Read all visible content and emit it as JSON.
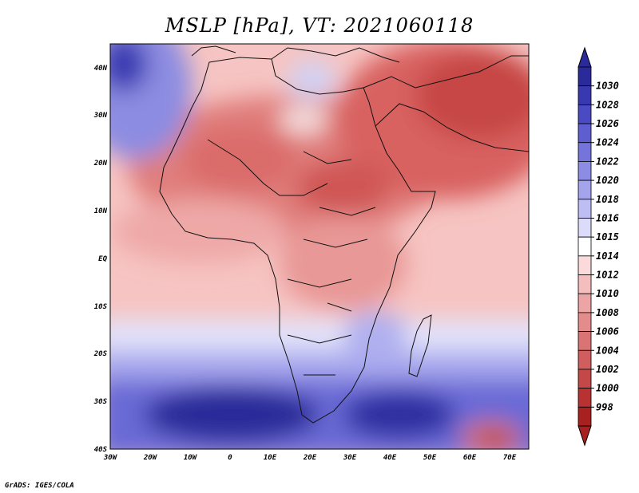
{
  "title": "MSLP [hPa], VT: 2021060118",
  "credit": "GrADS: IGES/COLA",
  "map": {
    "lat_labels": [
      "40N",
      "30N",
      "20N",
      "10N",
      "EQ",
      "10S",
      "20S",
      "30S",
      "40S"
    ],
    "lon_labels": [
      "30W",
      "20W",
      "10W",
      "0",
      "10E",
      "20E",
      "30E",
      "40E",
      "50E",
      "60E",
      "70E"
    ]
  },
  "colorbar": {
    "levels": [
      "1030",
      "1028",
      "1026",
      "1024",
      "1022",
      "1020",
      "1018",
      "1016",
      "1015",
      "1014",
      "1012",
      "1010",
      "1008",
      "1006",
      "1004",
      "1002",
      "1000",
      "998"
    ],
    "colors": [
      "#2a2a9a",
      "#3838b0",
      "#4a4ac2",
      "#5e5ed0",
      "#7474da",
      "#8c8ce4",
      "#a4a4ec",
      "#bebef4",
      "#dcdcfa",
      "#ffffff",
      "#fadada",
      "#f4bebe",
      "#eca4a4",
      "#e48c8c",
      "#da7474",
      "#d05e5e",
      "#c44848",
      "#b83232",
      "#a82020"
    ],
    "top_arrow_color": "#2a2a9a",
    "bottom_arrow_color": "#a82020"
  }
}
